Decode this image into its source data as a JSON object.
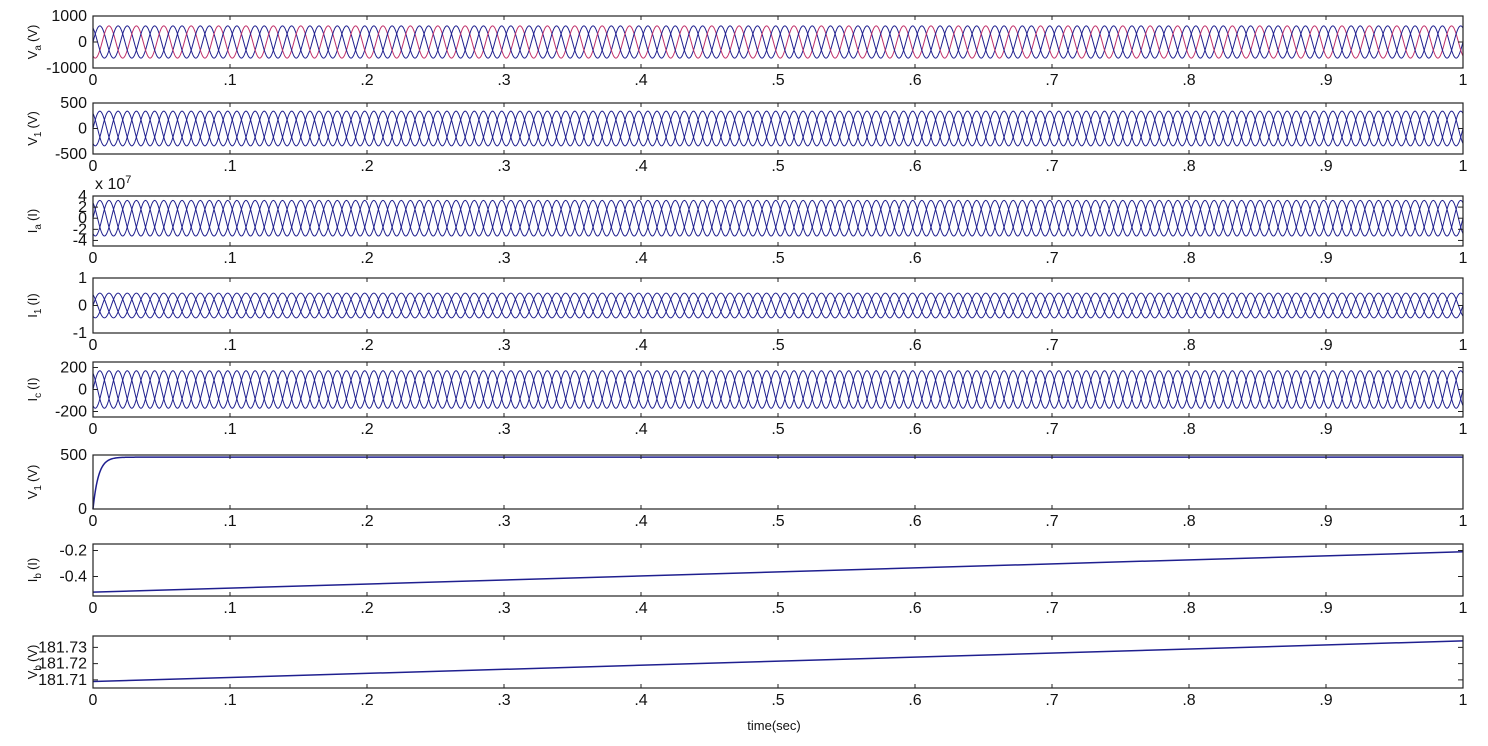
{
  "figure": {
    "xlabel": "time(sec)",
    "line_color": "#1f1f8f",
    "accent_color": "#c0306a"
  },
  "chart_data": [
    {
      "type": "line",
      "ylabel_main": "V",
      "ylabel_sub": "a",
      "ylabel_unit": "(V)",
      "ylim": [
        -1000,
        1000
      ],
      "yticks": [
        -1000,
        0,
        1000
      ],
      "xlim": [
        0,
        1
      ],
      "xticks": [
        0,
        0.1,
        0.2,
        0.3,
        0.4,
        0.5,
        0.6,
        0.7,
        0.8,
        0.9,
        1
      ],
      "series": [
        {
          "kind": "sine",
          "amplitude": 620,
          "frequency": 50,
          "phase_deg": 0,
          "color": "#1f1f8f"
        },
        {
          "kind": "sine",
          "amplitude": 620,
          "frequency": 50,
          "phase_deg": -120,
          "color": "#c0306a"
        },
        {
          "kind": "sine",
          "amplitude": 620,
          "frequency": 50,
          "phase_deg": 120,
          "color": "#1f1f8f"
        }
      ]
    },
    {
      "type": "line",
      "ylabel_main": "V",
      "ylabel_sub": "1",
      "ylabel_unit": "(V)",
      "ylim": [
        -500,
        500
      ],
      "yticks": [
        -500,
        0,
        500
      ],
      "xlim": [
        0,
        1
      ],
      "xticks": [
        0,
        0.1,
        0.2,
        0.3,
        0.4,
        0.5,
        0.6,
        0.7,
        0.8,
        0.9,
        1
      ],
      "series": [
        {
          "kind": "sine",
          "amplitude": 340,
          "frequency": 50,
          "phase_deg": 0,
          "color": "#1f1f8f"
        },
        {
          "kind": "sine",
          "amplitude": 340,
          "frequency": 50,
          "phase_deg": -120,
          "color": "#1f1f8f"
        },
        {
          "kind": "sine",
          "amplitude": 340,
          "frequency": 50,
          "phase_deg": 120,
          "color": "#1f1f8f"
        }
      ]
    },
    {
      "type": "line",
      "ylabel_main": "I",
      "ylabel_sub": "a",
      "ylabel_unit": "(I)",
      "multiplier": "x 10",
      "multiplier_exp": "7",
      "ylim": [
        -5,
        4
      ],
      "yticks": [
        -4,
        -2,
        0,
        2,
        4
      ],
      "xlim": [
        0,
        1
      ],
      "xticks": [
        0,
        0.1,
        0.2,
        0.3,
        0.4,
        0.5,
        0.6,
        0.7,
        0.8,
        0.9,
        1
      ],
      "series": [
        {
          "kind": "sine",
          "amplitude": 3.2,
          "frequency": 50,
          "phase_deg": 0,
          "color": "#1f1f8f"
        },
        {
          "kind": "sine",
          "amplitude": 3.2,
          "frequency": 50,
          "phase_deg": -120,
          "color": "#1f1f8f"
        },
        {
          "kind": "sine",
          "amplitude": 3.2,
          "frequency": 50,
          "phase_deg": 120,
          "color": "#1f1f8f"
        }
      ]
    },
    {
      "type": "line",
      "ylabel_main": "I",
      "ylabel_sub": "1",
      "ylabel_unit": "(I)",
      "ylim": [
        -1,
        1
      ],
      "yticks": [
        -1,
        0,
        1
      ],
      "xlim": [
        0,
        1
      ],
      "xticks": [
        0,
        0.1,
        0.2,
        0.3,
        0.4,
        0.5,
        0.6,
        0.7,
        0.8,
        0.9,
        1
      ],
      "series": [
        {
          "kind": "sine",
          "amplitude": 0.45,
          "frequency": 50,
          "phase_deg": 0,
          "color": "#1f1f8f"
        },
        {
          "kind": "sine",
          "amplitude": 0.45,
          "frequency": 50,
          "phase_deg": -120,
          "color": "#1f1f8f"
        },
        {
          "kind": "sine",
          "amplitude": 0.45,
          "frequency": 50,
          "phase_deg": 120,
          "color": "#1f1f8f"
        }
      ]
    },
    {
      "type": "line",
      "ylabel_main": "I",
      "ylabel_sub": "c",
      "ylabel_unit": "(I)",
      "ylim": [
        -250,
        250
      ],
      "yticks": [
        -200,
        0,
        200
      ],
      "xlim": [
        0,
        1
      ],
      "xticks": [
        0,
        0.1,
        0.2,
        0.3,
        0.4,
        0.5,
        0.6,
        0.7,
        0.8,
        0.9,
        1
      ],
      "series": [
        {
          "kind": "sine",
          "amplitude": 170,
          "frequency": 50,
          "phase_deg": 0,
          "color": "#1f1f8f"
        },
        {
          "kind": "sine",
          "amplitude": 170,
          "frequency": 50,
          "phase_deg": -120,
          "color": "#1f1f8f"
        },
        {
          "kind": "sine",
          "amplitude": 170,
          "frequency": 50,
          "phase_deg": 120,
          "color": "#1f1f8f"
        }
      ]
    },
    {
      "type": "line",
      "ylabel_main": "V",
      "ylabel_sub": "1",
      "ylabel_unit": "(V)",
      "ylim": [
        0,
        500
      ],
      "yticks": [
        0,
        500
      ],
      "xlim": [
        0,
        1
      ],
      "xticks": [
        0,
        0.1,
        0.2,
        0.3,
        0.4,
        0.5,
        0.6,
        0.7,
        0.8,
        0.9,
        1
      ],
      "series": [
        {
          "kind": "rise",
          "final": 480,
          "tau": 0.004,
          "color": "#1f1f8f"
        }
      ]
    },
    {
      "type": "line",
      "ylabel_main": "I",
      "ylabel_sub": "b",
      "ylabel_unit": "(I)",
      "ylim": [
        -0.55,
        -0.15
      ],
      "yticks": [
        -0.4,
        -0.2
      ],
      "xlim": [
        0,
        1
      ],
      "xticks": [
        0,
        0.1,
        0.2,
        0.3,
        0.4,
        0.5,
        0.6,
        0.7,
        0.8,
        0.9,
        1
      ],
      "series": [
        {
          "kind": "linear",
          "x": [
            0,
            1
          ],
          "y": [
            -0.52,
            -0.21
          ],
          "color": "#1f1f8f"
        }
      ]
    },
    {
      "type": "line",
      "ylabel_main": "V",
      "ylabel_sub": "b",
      "ylabel_unit": "(V)",
      "ylim": [
        181.705,
        181.737
      ],
      "yticks": [
        181.71,
        181.72,
        181.73
      ],
      "xlim": [
        0,
        1
      ],
      "xticks": [
        0,
        0.1,
        0.2,
        0.3,
        0.4,
        0.5,
        0.6,
        0.7,
        0.8,
        0.9,
        1
      ],
      "series": [
        {
          "kind": "linear",
          "x": [
            0,
            1
          ],
          "y": [
            181.709,
            181.734
          ],
          "color": "#1f1f8f"
        }
      ]
    }
  ]
}
